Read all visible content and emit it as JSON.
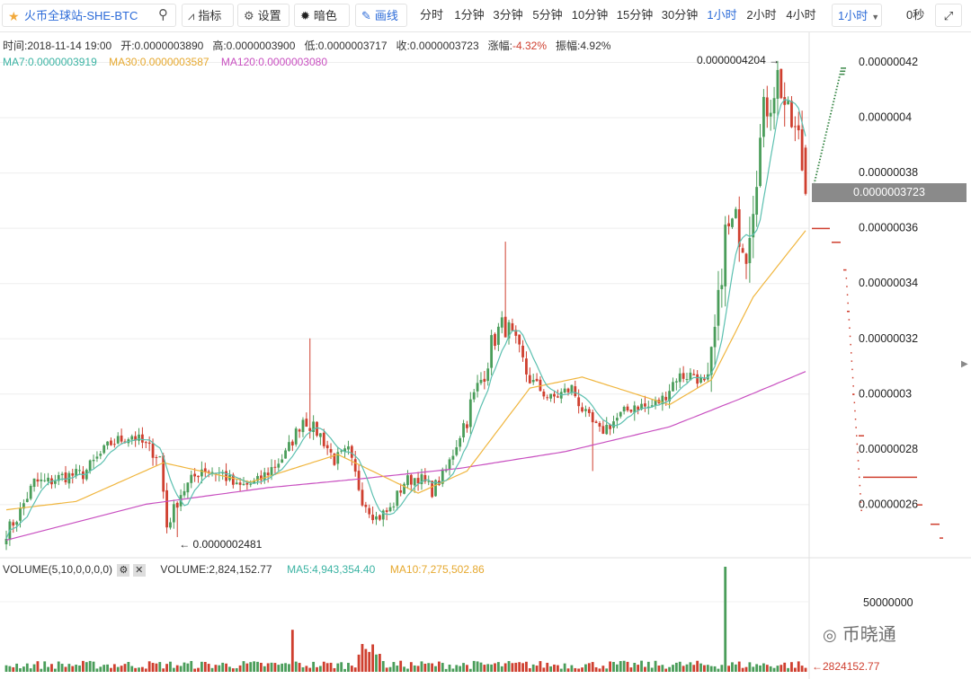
{
  "toolbar": {
    "symbol": "火币全球站-SHE-BTC",
    "indicators_label": "指标",
    "settings_label": "设置",
    "theme_label": "暗色",
    "draw_label": "画线",
    "intervals": [
      "分时",
      "1分钟",
      "3分钟",
      "5分钟",
      "10分钟",
      "15分钟",
      "30分钟",
      "1小时",
      "2小时",
      "4小时"
    ],
    "active_interval": "1小时",
    "interval_select": "1小时",
    "timer": "0秒"
  },
  "ohlc_info": {
    "time": "时间:2018-11-14 19:00",
    "open": "开:0.0000003890",
    "high": "高:0.0000003900",
    "low": "低:0.0000003717",
    "close": "收:0.0000003723",
    "change_label": "涨幅:",
    "change_value": "-4.32%",
    "amplitude": "振幅:4.92%"
  },
  "ma_info": {
    "ma7": "MA7:0.0000003919",
    "ma30": "MA30:0.0000003587",
    "ma120": "MA120:0.0000003080"
  },
  "volume_info": {
    "name": "VOLUME(5,10,0,0,0,0)",
    "volume": "VOLUME:2,824,152.77",
    "ma5": "MA5:4,943,354.40",
    "ma10": "MA10:7,275,502.86"
  },
  "chart_data": {
    "type": "candlestick",
    "price_axis_ticks": [
      "0.00000026",
      "0.00000028",
      "0.0000003",
      "0.00000032",
      "0.00000034",
      "0.00000036",
      "0.00000038",
      "0.0000004",
      "0.00000042"
    ],
    "price_ylim": [
      2.45e-07,
      4.32e-07
    ],
    "current_price": "0.0000003723",
    "max_marker": "0.0000004204",
    "min_marker": "0.0000002481",
    "volume_axis_tick": "50000000",
    "volume_marker": "2824152.77",
    "colors": {
      "up": "#4a9d5a",
      "down": "#cf3f2f",
      "ma7": "#5cc0b0",
      "ma30": "#f0b63f",
      "ma120": "#c84fc0",
      "depth_buy": "#3d8a4b",
      "depth_sell": "#cf3f2f"
    },
    "close_anchors": [
      [
        0,
        2.5
      ],
      [
        3,
        2.55
      ],
      [
        8,
        2.68
      ],
      [
        12,
        2.68
      ],
      [
        16,
        2.7
      ],
      [
        22,
        2.71
      ],
      [
        30,
        2.82
      ],
      [
        36,
        2.85
      ],
      [
        44,
        2.77
      ],
      [
        46,
        2.52
      ],
      [
        50,
        2.64
      ],
      [
        56,
        2.73
      ],
      [
        62,
        2.71
      ],
      [
        66,
        2.66
      ],
      [
        72,
        2.68
      ],
      [
        80,
        2.78
      ],
      [
        85,
        2.91
      ],
      [
        90,
        2.85
      ],
      [
        94,
        2.76
      ],
      [
        98,
        2.79
      ],
      [
        102,
        2.62
      ],
      [
        106,
        2.55
      ],
      [
        110,
        2.58
      ],
      [
        114,
        2.68
      ],
      [
        118,
        2.7
      ],
      [
        122,
        2.65
      ],
      [
        126,
        2.72
      ],
      [
        132,
        2.92
      ],
      [
        136,
        3.05
      ],
      [
        140,
        3.21
      ],
      [
        143,
        3.25
      ],
      [
        146,
        3.16
      ],
      [
        150,
        3.05
      ],
      [
        156,
        2.98
      ],
      [
        162,
        3.02
      ],
      [
        166,
        2.92
      ],
      [
        170,
        2.86
      ],
      [
        176,
        2.92
      ],
      [
        180,
        2.96
      ],
      [
        184,
        2.95
      ],
      [
        188,
        2.98
      ],
      [
        192,
        3.06
      ],
      [
        197,
        3.07
      ],
      [
        201,
        3.02
      ],
      [
        204,
        3.32
      ],
      [
        206,
        3.58
      ],
      [
        209,
        3.62
      ],
      [
        212,
        3.52
      ],
      [
        214,
        3.7
      ],
      [
        217,
        4.02
      ],
      [
        219,
        4.06
      ],
      [
        221,
        4.15
      ],
      [
        224,
        4.0
      ],
      [
        227,
        3.92
      ],
      [
        229,
        3.72
      ]
    ],
    "ma30_anchors": [
      [
        0,
        2.58
      ],
      [
        20,
        2.61
      ],
      [
        45,
        2.75
      ],
      [
        70,
        2.68
      ],
      [
        95,
        2.78
      ],
      [
        118,
        2.64
      ],
      [
        132,
        2.72
      ],
      [
        150,
        3.02
      ],
      [
        165,
        3.06
      ],
      [
        190,
        2.96
      ],
      [
        202,
        3.05
      ],
      [
        214,
        3.35
      ],
      [
        229,
        3.59
      ]
    ],
    "ma120_anchors": [
      [
        0,
        2.47
      ],
      [
        40,
        2.6
      ],
      [
        75,
        2.66
      ],
      [
        100,
        2.69
      ],
      [
        130,
        2.73
      ],
      [
        160,
        2.79
      ],
      [
        190,
        2.88
      ],
      [
        210,
        2.98
      ],
      [
        229,
        3.08
      ]
    ]
  }
}
